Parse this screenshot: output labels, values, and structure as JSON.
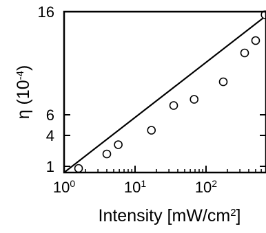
{
  "chart_data": {
    "type": "scatter",
    "xlabel": "Intensity [mW/cm",
    "xlabel_sup": "2",
    "xlabel_end": "]",
    "ylabel": "η (10",
    "ylabel_sup": "-4",
    "ylabel_end": ")",
    "x_scale": "log",
    "x_range": [
      1,
      700
    ],
    "x_ticks": [
      {
        "value": 1,
        "base": "10",
        "exp": "0"
      },
      {
        "value": 10,
        "base": "10",
        "exp": "1"
      },
      {
        "value": 100,
        "base": "10",
        "exp": "2"
      }
    ],
    "y_range": [
      0.4,
      16
    ],
    "y_ticks": [
      {
        "value": 1,
        "label": "1"
      },
      {
        "value": 4,
        "label": "4"
      },
      {
        "value": 6,
        "label": "6"
      },
      {
        "value": 16,
        "label": "16"
      }
    ],
    "grid": false,
    "series": [
      {
        "marker": "open-circle",
        "points": [
          {
            "x": 1.6,
            "y": 0.8
          },
          {
            "x": 4,
            "y": 2.2
          },
          {
            "x": 5.8,
            "y": 3.1
          },
          {
            "x": 17,
            "y": 4.5
          },
          {
            "x": 35,
            "y": 6.9
          },
          {
            "x": 68,
            "y": 7.5
          },
          {
            "x": 175,
            "y": 9.2
          },
          {
            "x": 350,
            "y": 12.0
          },
          {
            "x": 500,
            "y": 13.2
          },
          {
            "x": 680,
            "y": 15.7
          }
        ]
      }
    ],
    "fit_line": {
      "x": [
        1,
        700
      ],
      "y": [
        0.4,
        15.6
      ],
      "color": "#000000"
    }
  }
}
